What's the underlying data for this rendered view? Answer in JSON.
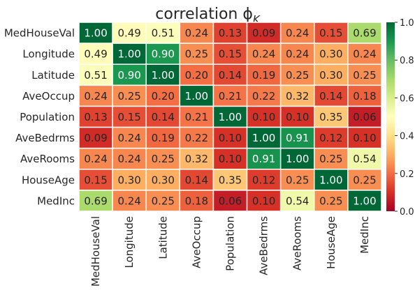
{
  "chart_data": {
    "type": "heatmap",
    "title": "correlation ϕ",
    "title_subscript": "K",
    "row_labels": [
      "MedHouseVal",
      "Longitude",
      "Latitude",
      "AveOccup",
      "Population",
      "AveBedrms",
      "AveRooms",
      "HouseAge",
      "MedInc"
    ],
    "col_labels": [
      "MedHouseVal",
      "Longitude",
      "Latitude",
      "AveOccup",
      "Population",
      "AveBedrms",
      "AveRooms",
      "HouseAge",
      "MedInc"
    ],
    "values": [
      [
        1.0,
        0.49,
        0.51,
        0.24,
        0.13,
        0.09,
        0.24,
        0.15,
        0.69
      ],
      [
        0.49,
        1.0,
        0.9,
        0.25,
        0.15,
        0.24,
        0.24,
        0.3,
        0.24
      ],
      [
        0.51,
        0.9,
        1.0,
        0.2,
        0.14,
        0.19,
        0.25,
        0.3,
        0.25
      ],
      [
        0.24,
        0.25,
        0.2,
        1.0,
        0.21,
        0.22,
        0.32,
        0.14,
        0.18
      ],
      [
        0.13,
        0.15,
        0.14,
        0.21,
        1.0,
        0.1,
        0.1,
        0.35,
        0.06
      ],
      [
        0.09,
        0.24,
        0.19,
        0.22,
        0.1,
        1.0,
        0.91,
        0.12,
        0.1
      ],
      [
        0.24,
        0.24,
        0.25,
        0.32,
        0.1,
        0.91,
        1.0,
        0.25,
        0.54
      ],
      [
        0.15,
        0.3,
        0.3,
        0.14,
        0.35,
        0.12,
        0.25,
        1.0,
        0.25
      ],
      [
        0.69,
        0.24,
        0.25,
        0.18,
        0.06,
        0.1,
        0.54,
        0.25,
        1.0
      ]
    ],
    "value_format": "2 decimals",
    "colormap": "RdYlGn",
    "vmin": 0.0,
    "vmax": 1.0,
    "colorbar_ticks": [
      0.0,
      0.2,
      0.4,
      0.6,
      0.8,
      1.0
    ],
    "cell_border_color": "#ffffff",
    "grid": false,
    "legend": "colorbar right"
  }
}
